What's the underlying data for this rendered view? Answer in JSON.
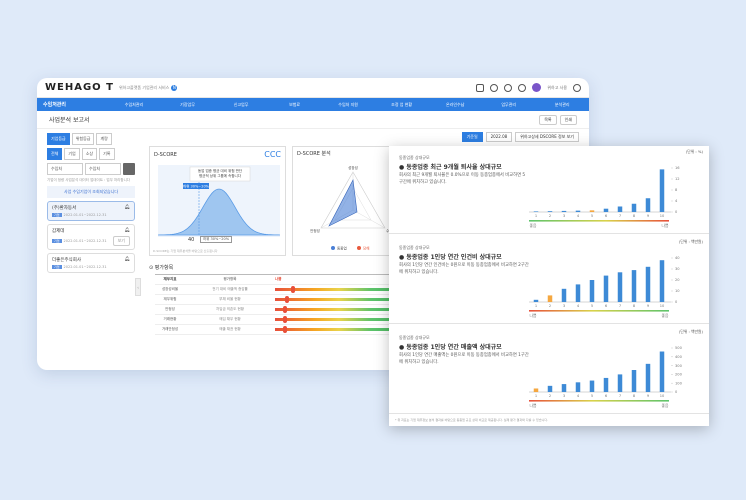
{
  "window": {
    "logo": "WEHAGO T",
    "logo_sub": "위하고플랫폼 기업관리 서비스",
    "badge": "N",
    "user": "위하고 사용",
    "nav": [
      "수임처관리",
      "수임처관리",
      "기장업무",
      "신고업무",
      "보험료",
      "수임처 지원",
      "조정 업 현황",
      "온라인수납",
      "업무관리",
      "분석관리"
    ],
    "page_title": "사업분석 보고서",
    "title_buttons": [
      "목록",
      "인쇄"
    ]
  },
  "left": {
    "tabs_row1": [
      "기업등급",
      "위험등급",
      "계량"
    ],
    "tabs_row2": [
      "전체",
      "기업",
      "소상",
      "기록"
    ],
    "select1": "수임처",
    "select2": "수임처",
    "hint": "기업이 정량 사업분석 데이터 업데이트 : 업무 처리합니다",
    "tip": "사업 수임기업이 조회되었습니다",
    "companies": [
      {
        "name": "(주)환자동서",
        "tag": "기업",
        "date": "2022.01.01~2022.12.31"
      },
      {
        "name": "갑제데",
        "tag": "기업",
        "date": "2022.01.01~2022.12.31",
        "btn": "보기"
      },
      {
        "name": "더좋은주식회사",
        "tag": "기업",
        "date": "2022.01.01~2022.12.31"
      }
    ]
  },
  "main": {
    "filters": [
      "기준일",
      "2022.08",
      "위하고상세 DSCORE 정보 보기"
    ],
    "card1": {
      "title": "D-SCORE",
      "grade": "CCC",
      "tooltip_line1": "동업 업종 평균 대비 위험 판단",
      "tooltip_line2": "평균적 상위 그룹에 속합니다",
      "band": "하위 30%~20%",
      "score_label": "40",
      "score_range": "하위 30%~20%",
      "note": "D-SCORE는 기업 재무분석을 바탕으로 산출됩니다"
    },
    "card2": {
      "title": "D-SCORE 분석",
      "axis_top": "성장성",
      "axis_left": "안정성",
      "axis_right": "수익성",
      "legend1": "동종업",
      "legend2": "당해"
    },
    "section_title": "평가항목",
    "table_head": [
      "재무지표",
      "평가항목",
      "나쁨"
    ],
    "rows": [
      {
        "c1": "성장성비율",
        "c2": "전기 대비 매출액 증감률",
        "pos": 0.1
      },
      {
        "c1": "재무위험",
        "c2": "부채 비율 현황",
        "pos": 0.06
      },
      {
        "c1": "안정성",
        "c2": "차입금 의존도 현황",
        "pos": 0.05
      },
      {
        "c1": "거래현황",
        "c2": "매입 채무 현황",
        "pos": 0.05
      },
      {
        "c1": "거래안정성",
        "c2": "매출 채권 현황",
        "pos": 0.05
      }
    ]
  },
  "panel": {
    "footnote": "* 위 지표는 기업 재무정보 분석 결과를 바탕으로 동종업 규모 상대 비교로 제공됩니다. 실제 평가 결과와 다를 수 있습니다.",
    "sections": [
      {
        "small": "동종업종 상대규모",
        "title": "● 동종업종 최근 9개월 퇴사율 상대규모",
        "desc": "회사의 최근 9개월 퇴사율은 0.0%으로 이동 동종업종에서 비교하면 5구간에 위치하고 있습니다.",
        "unit": "(단위 : %)",
        "left_label": "좋음",
        "right_label": "나쁨",
        "yticks": [
          "0",
          "4",
          "8",
          "12",
          "16"
        ],
        "xticks": [
          "1",
          "2",
          "3",
          "4",
          "5",
          "6",
          "7",
          "8",
          "9",
          "10"
        ],
        "values": [
          0.2,
          0.3,
          0.4,
          0.5,
          0.6,
          1.2,
          2.0,
          3.0,
          5.0,
          15.5
        ],
        "highlight": 5,
        "ymax": 16,
        "grad_dir": "good-left"
      },
      {
        "small": "동종업종 상대규모",
        "title": "● 동종업종 1인당 연간 인건비 상대규모",
        "desc": "회사의 1인당 연간 인건비는 0원으로 이동 동종업종에서 비교하면 2구간에 위치하고 있습니다.",
        "unit": "(단위 : 백만원)",
        "left_label": "나쁨",
        "right_label": "좋음",
        "yticks": [
          "0",
          "10",
          "20",
          "30",
          "40"
        ],
        "xticks": [
          "1",
          "2",
          "3",
          "4",
          "5",
          "6",
          "7",
          "8",
          "9",
          "10"
        ],
        "values": [
          2,
          6,
          12,
          16,
          20,
          24,
          27,
          29,
          32,
          38
        ],
        "highlight": 2,
        "ymax": 40,
        "grad_dir": "good-right"
      },
      {
        "small": "동종업종 상대규모",
        "title": "● 동종업종 1인당 연간 매출액 상대규모",
        "desc": "회사의 1인당 연간 매출액는 0원으로 이동 동종업종에서 비교하면 1구간에 위치하고 있습니다.",
        "unit": "(단위 : 백만원)",
        "left_label": "나쁨",
        "right_label": "좋음",
        "yticks": [
          "0",
          "100",
          "200",
          "300",
          "400",
          "500"
        ],
        "xticks": [
          "1",
          "2",
          "3",
          "4",
          "5",
          "6",
          "7",
          "8",
          "9",
          "10"
        ],
        "values": [
          40,
          70,
          90,
          110,
          130,
          160,
          200,
          250,
          320,
          460
        ],
        "highlight": 1,
        "ymax": 500,
        "grad_dir": "good-right"
      }
    ]
  }
}
